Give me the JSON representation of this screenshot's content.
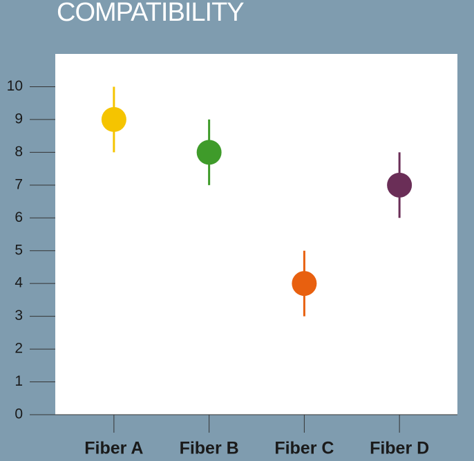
{
  "chart_data": {
    "type": "errorbar",
    "title": "COMPATIBILITY",
    "categories": [
      "Fiber A",
      "Fiber B",
      "Fiber C",
      "Fiber D"
    ],
    "values": [
      9,
      8,
      4,
      7
    ],
    "errors": [
      1,
      1,
      1,
      1
    ],
    "colors": [
      "#f5c400",
      "#3f9b2a",
      "#e8600f",
      "#6a2e57"
    ],
    "ylim": [
      0,
      11
    ],
    "yticks": [
      0,
      1,
      2,
      3,
      4,
      5,
      6,
      7,
      8,
      9,
      10
    ]
  }
}
